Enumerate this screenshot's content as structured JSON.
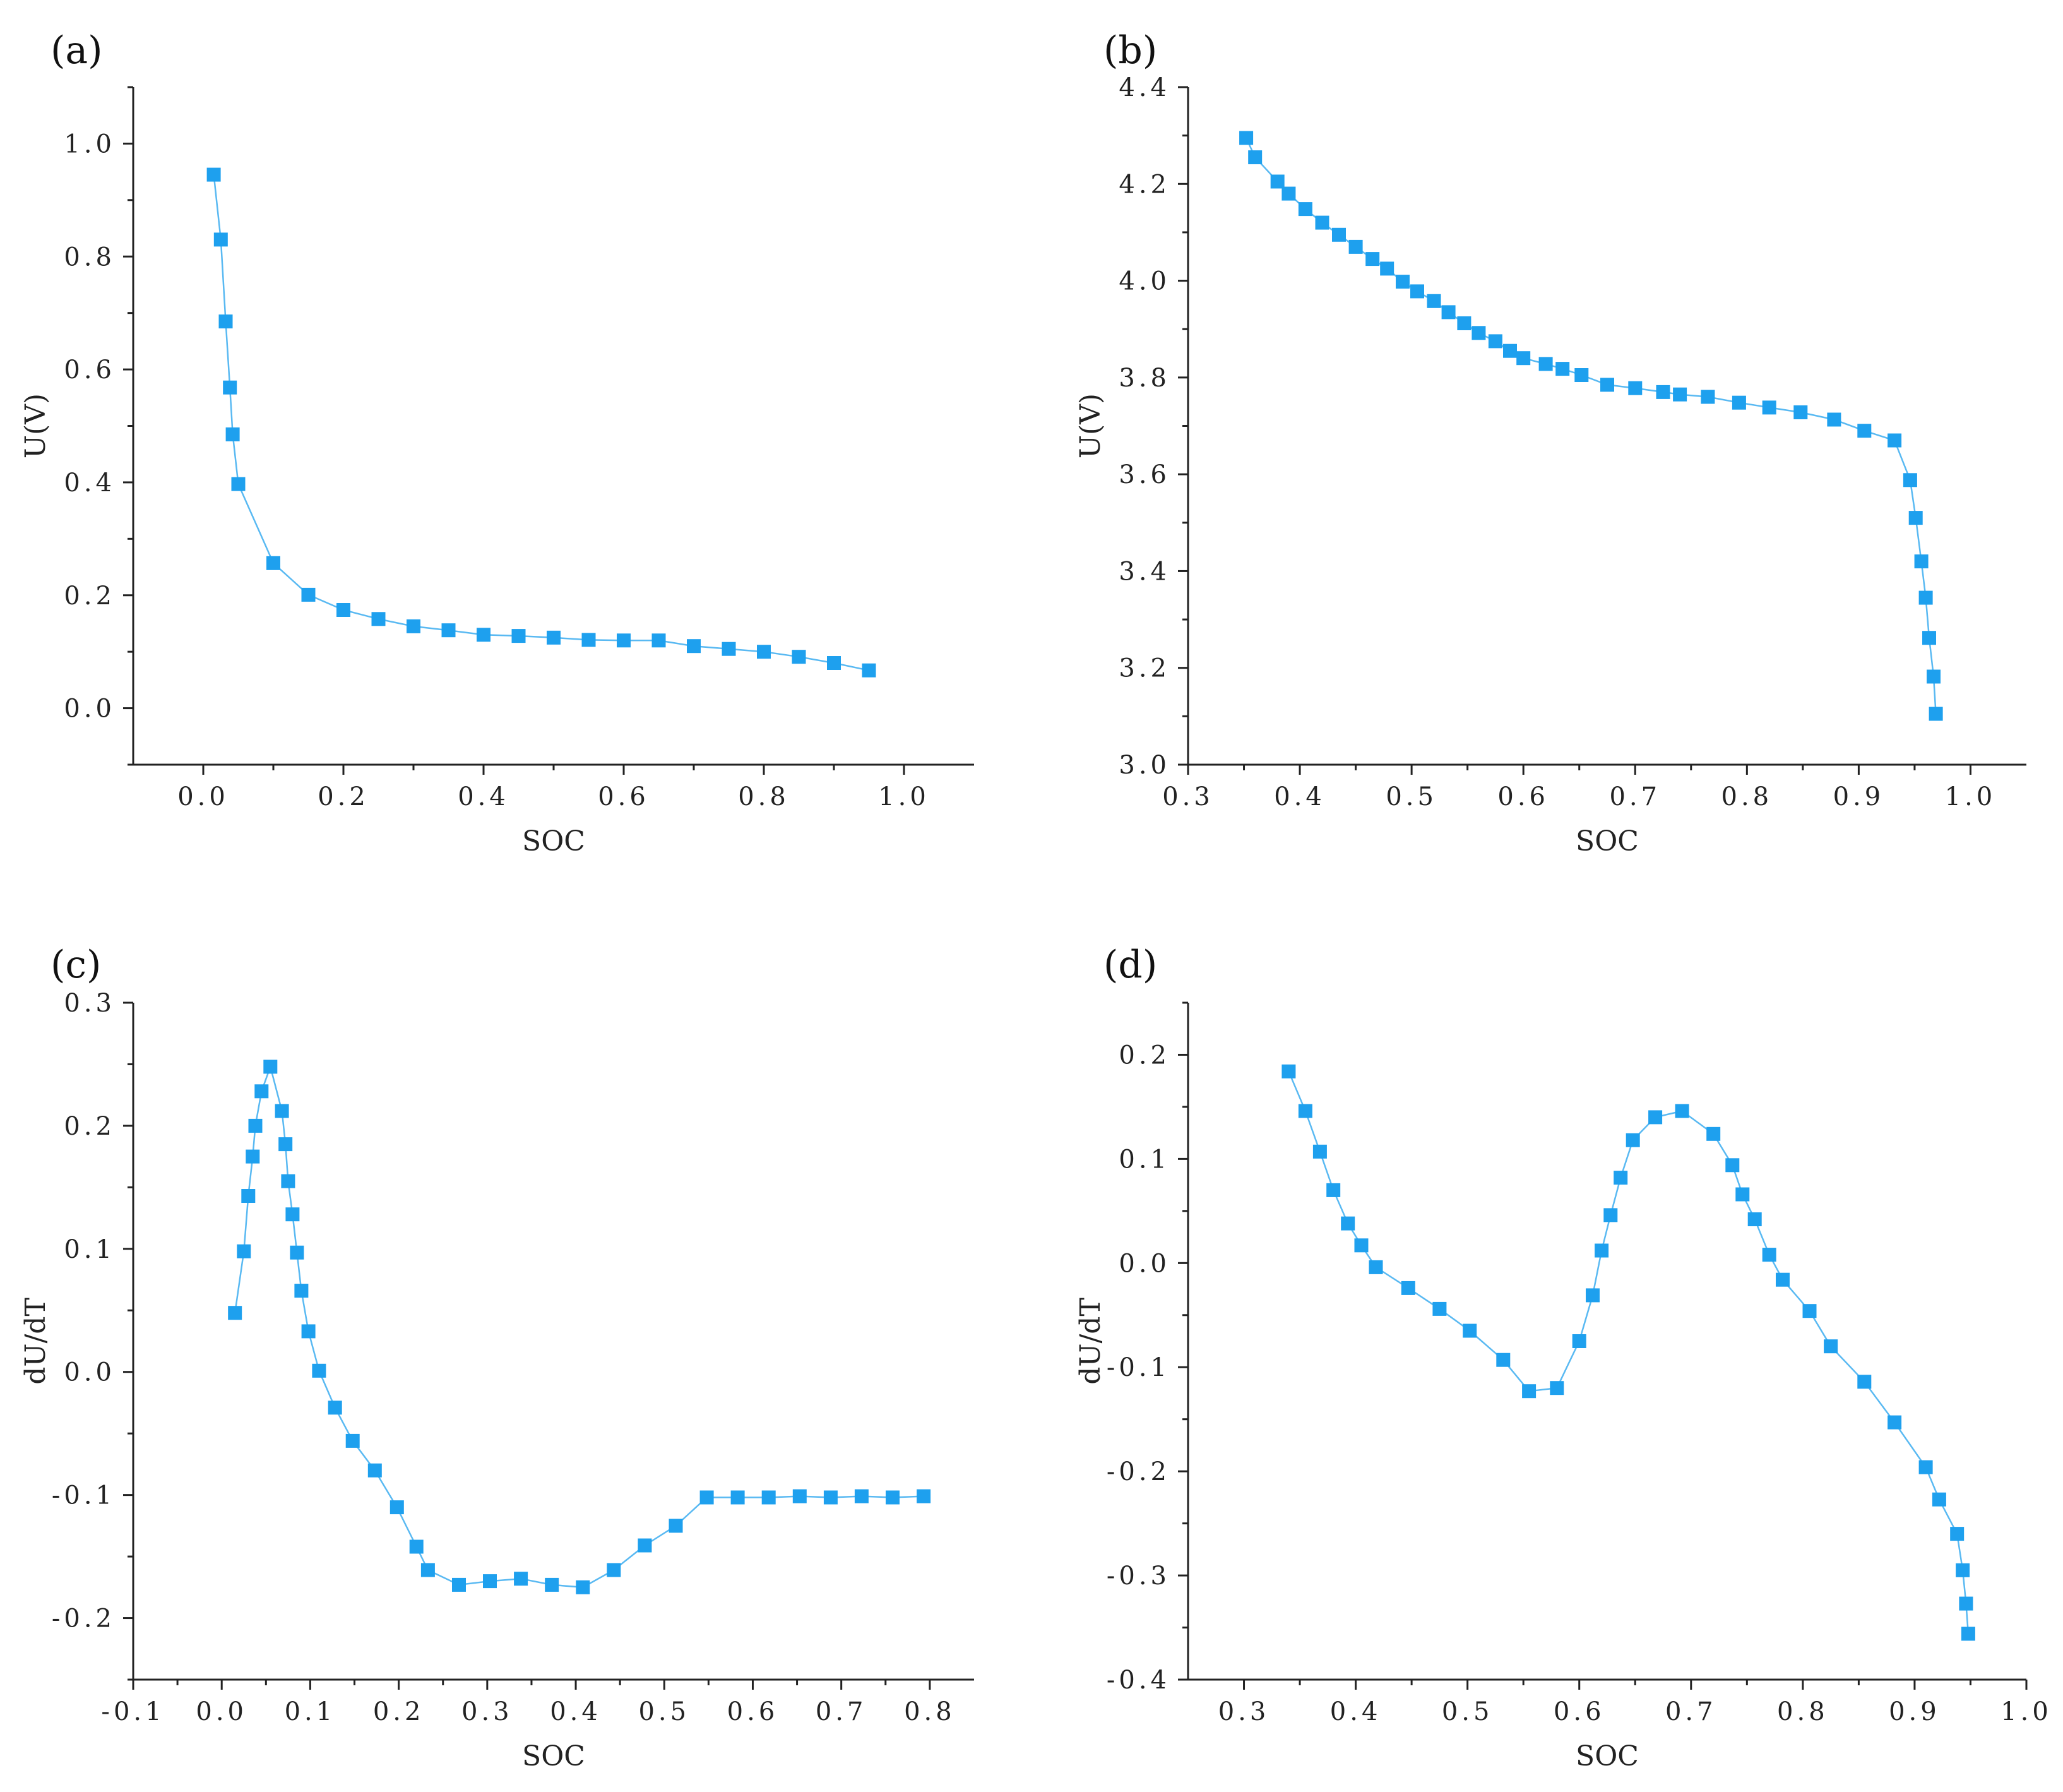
{
  "style": {
    "series_color": "#1ea0ee",
    "line_color": "#59b9f2",
    "axis_color": "#222222"
  },
  "chart_data": [
    {
      "type": "line",
      "panel_label": "(a)",
      "xlabel": "SOC",
      "ylabel": "U(V)",
      "xlim": [
        -0.1,
        1.1
      ],
      "ylim": [
        -0.1,
        1.1
      ],
      "xticks": [
        0.0,
        0.2,
        0.4,
        0.6,
        0.8,
        1.0
      ],
      "xtick_labels": [
        "0.0",
        "0.2",
        "0.4",
        "0.6",
        "0.8",
        "1.0"
      ],
      "yticks": [
        0.0,
        0.2,
        0.4,
        0.6,
        0.8,
        1.0
      ],
      "ytick_labels": [
        "0.0",
        "0.2",
        "0.4",
        "0.6",
        "0.8",
        "1.0"
      ],
      "x": [
        0.015,
        0.025,
        0.032,
        0.038,
        0.042,
        0.05,
        0.1,
        0.15,
        0.2,
        0.25,
        0.3,
        0.35,
        0.4,
        0.45,
        0.5,
        0.55,
        0.6,
        0.65,
        0.7,
        0.75,
        0.8,
        0.85,
        0.9,
        0.95
      ],
      "y": [
        0.945,
        0.83,
        0.685,
        0.568,
        0.485,
        0.397,
        0.257,
        0.201,
        0.174,
        0.158,
        0.145,
        0.138,
        0.13,
        0.128,
        0.125,
        0.121,
        0.12,
        0.12,
        0.11,
        0.105,
        0.1,
        0.091,
        0.08,
        0.067
      ]
    },
    {
      "type": "line",
      "panel_label": "(b)",
      "xlabel": "SOC",
      "ylabel": "U(V)",
      "xlim": [
        0.3,
        1.05
      ],
      "ylim": [
        3.0,
        4.4
      ],
      "xticks": [
        0.3,
        0.4,
        0.5,
        0.6,
        0.7,
        0.8,
        0.9,
        1.0
      ],
      "xtick_labels": [
        "0.3",
        "0.4",
        "0.5",
        "0.6",
        "0.7",
        "0.8",
        "0.9",
        "1.0"
      ],
      "yticks": [
        3.0,
        3.2,
        3.4,
        3.6,
        3.8,
        4.0,
        4.2,
        4.4
      ],
      "ytick_labels": [
        "3.0",
        "3.2",
        "3.4",
        "3.6",
        "3.8",
        "4.0",
        "4.2",
        "4.4"
      ],
      "x": [
        0.352,
        0.36,
        0.38,
        0.39,
        0.405,
        0.42,
        0.435,
        0.45,
        0.465,
        0.478,
        0.492,
        0.505,
        0.52,
        0.533,
        0.547,
        0.56,
        0.575,
        0.588,
        0.6,
        0.62,
        0.635,
        0.652,
        0.675,
        0.7,
        0.725,
        0.74,
        0.765,
        0.793,
        0.82,
        0.848,
        0.878,
        0.905,
        0.932,
        0.946,
        0.951,
        0.956,
        0.96,
        0.963,
        0.967,
        0.969
      ],
      "y": [
        4.295,
        4.255,
        4.205,
        4.18,
        4.148,
        4.12,
        4.095,
        4.07,
        4.045,
        4.025,
        3.998,
        3.978,
        3.958,
        3.935,
        3.912,
        3.892,
        3.875,
        3.855,
        3.84,
        3.828,
        3.818,
        3.805,
        3.785,
        3.778,
        3.77,
        3.765,
        3.76,
        3.748,
        3.738,
        3.728,
        3.713,
        3.69,
        3.67,
        3.588,
        3.51,
        3.42,
        3.345,
        3.262,
        3.182,
        3.105
      ]
    },
    {
      "type": "line",
      "panel_label": "(c)",
      "xlabel": "SOC",
      "ylabel": "dU/dT",
      "xlim": [
        -0.1,
        0.85
      ],
      "ylim": [
        -0.25,
        0.3
      ],
      "xticks": [
        -0.1,
        0.0,
        0.1,
        0.2,
        0.3,
        0.4,
        0.5,
        0.6,
        0.7,
        0.8
      ],
      "xtick_labels": [
        "-0.1",
        "0.0",
        "0.1",
        "0.2",
        "0.3",
        "0.4",
        "0.5",
        "0.6",
        "0.7",
        "0.8"
      ],
      "yticks": [
        -0.2,
        -0.1,
        0.0,
        0.1,
        0.2,
        0.3
      ],
      "ytick_labels": [
        "-0.2",
        "-0.1",
        "0.0",
        "0.1",
        "0.2",
        "0.3"
      ],
      "x": [
        0.015,
        0.025,
        0.03,
        0.035,
        0.038,
        0.045,
        0.055,
        0.068,
        0.072,
        0.075,
        0.08,
        0.085,
        0.09,
        0.098,
        0.11,
        0.128,
        0.148,
        0.173,
        0.198,
        0.22,
        0.233,
        0.268,
        0.303,
        0.338,
        0.373,
        0.408,
        0.443,
        0.478,
        0.513,
        0.548,
        0.583,
        0.618,
        0.653,
        0.688,
        0.723,
        0.758,
        0.793
      ],
      "y": [
        0.048,
        0.098,
        0.143,
        0.175,
        0.2,
        0.228,
        0.248,
        0.212,
        0.185,
        0.155,
        0.128,
        0.097,
        0.066,
        0.033,
        0.001,
        -0.029,
        -0.056,
        -0.08,
        -0.11,
        -0.142,
        -0.161,
        -0.173,
        -0.17,
        -0.168,
        -0.173,
        -0.175,
        -0.161,
        -0.141,
        -0.125,
        -0.102,
        -0.102,
        -0.102,
        -0.101,
        -0.102,
        -0.101,
        -0.102,
        -0.101
      ]
    },
    {
      "type": "line",
      "panel_label": "(d)",
      "xlabel": "SOC",
      "ylabel": "dU/dT",
      "xlim": [
        0.25,
        1.0
      ],
      "ylim": [
        -0.4,
        0.25
      ],
      "xticks": [
        0.3,
        0.4,
        0.5,
        0.6,
        0.7,
        0.8,
        0.9,
        1.0
      ],
      "xtick_labels": [
        "0.3",
        "0.4",
        "0.5",
        "0.6",
        "0.7",
        "0.8",
        "0.9",
        "1.0"
      ],
      "yticks": [
        -0.4,
        -0.3,
        -0.2,
        -0.1,
        0.0,
        0.1,
        0.2
      ],
      "ytick_labels": [
        "-0.4",
        "-0.3",
        "-0.2",
        "-0.1",
        "0.0",
        "0.1",
        "0.2"
      ],
      "x": [
        0.34,
        0.355,
        0.368,
        0.38,
        0.393,
        0.405,
        0.418,
        0.447,
        0.475,
        0.502,
        0.532,
        0.555,
        0.58,
        0.6,
        0.612,
        0.62,
        0.628,
        0.637,
        0.648,
        0.668,
        0.692,
        0.72,
        0.737,
        0.746,
        0.757,
        0.77,
        0.782,
        0.806,
        0.825,
        0.855,
        0.882,
        0.91,
        0.922,
        0.938,
        0.943,
        0.946,
        0.948
      ],
      "y": [
        0.184,
        0.146,
        0.107,
        0.07,
        0.038,
        0.017,
        -0.004,
        -0.024,
        -0.044,
        -0.065,
        -0.093,
        -0.123,
        -0.12,
        -0.075,
        -0.031,
        0.012,
        0.046,
        0.082,
        0.118,
        0.14,
        0.146,
        0.124,
        0.094,
        0.066,
        0.042,
        0.008,
        -0.016,
        -0.046,
        -0.08,
        -0.114,
        -0.153,
        -0.196,
        -0.227,
        -0.26,
        -0.295,
        -0.327,
        -0.356
      ]
    }
  ]
}
